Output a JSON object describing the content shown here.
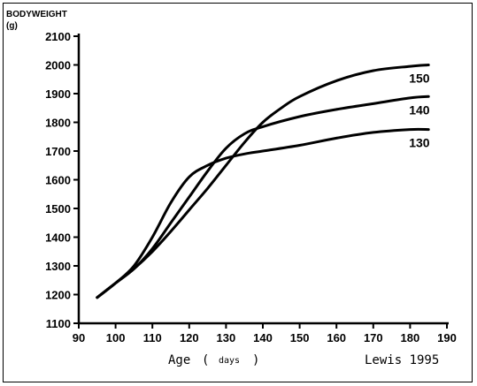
{
  "chart_data": {
    "type": "line",
    "ylabel": "BODYWEIGHT",
    "ylabel_unit": "(g)",
    "xlabel": "Age",
    "xlabel_open": "(",
    "xlabel_unit": "days",
    "xlabel_close": ")",
    "credit": "Lewis 1995",
    "xlim": [
      90,
      190
    ],
    "ylim": [
      1100,
      2100
    ],
    "x_ticks": [
      90,
      100,
      110,
      120,
      130,
      140,
      150,
      160,
      170,
      180,
      190
    ],
    "y_ticks": [
      1100,
      1200,
      1300,
      1400,
      1500,
      1600,
      1700,
      1800,
      1900,
      2000,
      2100
    ],
    "grid": false,
    "series": [
      {
        "name": "130",
        "x": [
          95,
          100,
          105,
          110,
          115,
          120,
          125,
          130,
          135,
          140,
          150,
          160,
          170,
          180,
          185
        ],
        "y": [
          1190,
          1240,
          1300,
          1400,
          1520,
          1610,
          1650,
          1675,
          1690,
          1700,
          1720,
          1745,
          1765,
          1775,
          1775
        ]
      },
      {
        "name": "140",
        "x": [
          95,
          100,
          105,
          110,
          115,
          120,
          125,
          130,
          135,
          140,
          150,
          160,
          170,
          180,
          185
        ],
        "y": [
          1190,
          1240,
          1290,
          1360,
          1450,
          1540,
          1630,
          1710,
          1760,
          1785,
          1820,
          1845,
          1865,
          1885,
          1890
        ]
      },
      {
        "name": "150",
        "x": [
          95,
          100,
          105,
          110,
          115,
          120,
          125,
          130,
          135,
          140,
          145,
          150,
          160,
          170,
          180,
          185
        ],
        "y": [
          1190,
          1240,
          1290,
          1350,
          1420,
          1495,
          1570,
          1650,
          1730,
          1800,
          1850,
          1890,
          1945,
          1980,
          1995,
          2000
        ]
      }
    ]
  }
}
